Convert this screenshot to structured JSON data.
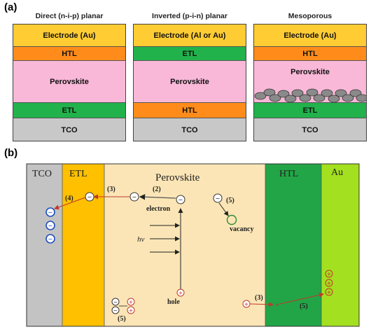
{
  "panel_a": {
    "label": "(a)",
    "columns": [
      {
        "title": "Direct (n-i-p) planar",
        "layers": [
          {
            "label": "Electrode (Au)",
            "color": "#ffcc33"
          },
          {
            "label": "HTL",
            "color": "#ff8c1a"
          },
          {
            "label": "Perovskite",
            "color": "#f9b8d8"
          },
          {
            "label": "ETL",
            "color": "#21b24b"
          },
          {
            "label": "TCO",
            "color": "#c8c8c8"
          }
        ]
      },
      {
        "title": "Inverted (p-i-n) planar",
        "layers": [
          {
            "label": "Electrode (Al or Au)",
            "color": "#ffcc33"
          },
          {
            "label": "ETL",
            "color": "#21b24b"
          },
          {
            "label": "Perovskite",
            "color": "#f9b8d8"
          },
          {
            "label": "HTL",
            "color": "#ff8c1a"
          },
          {
            "label": "TCO",
            "color": "#c8c8c8"
          }
        ]
      },
      {
        "title": "Mesoporous",
        "layers": [
          {
            "label": "Electrode (Au)",
            "color": "#ffcc33"
          },
          {
            "label": "HTL",
            "color": "#ff8c1a"
          },
          {
            "label": "Perovskite",
            "color": "#f9b8d8"
          },
          {
            "label": "ETL",
            "color": "#21b24b"
          },
          {
            "label": "TCO",
            "color": "#c8c8c8"
          }
        ]
      }
    ]
  },
  "panel_b": {
    "label": "(b)",
    "regions": {
      "tco": {
        "label": "TCO",
        "color": "#c3c3c3"
      },
      "etl": {
        "label": "ETL",
        "color": "#ffc000"
      },
      "perovskite": {
        "label": "Perovskite",
        "color": "#fbe5b6"
      },
      "htl": {
        "label": "HTL",
        "color": "#22a546"
      },
      "au": {
        "label": "Au",
        "color": "#a3e01f"
      }
    },
    "annotations": {
      "step2": "(2)",
      "step3_top": "(3)",
      "step4": "(4)",
      "step5_top": "(5)",
      "step3_bottom": "(3)",
      "step5_bottom": "(5)",
      "step5_left": "(5)",
      "electron": "electron",
      "hole": "hole",
      "vacancy": "vacancy",
      "hv": "hv"
    },
    "symbols": {
      "minus": "−",
      "plus": "+"
    }
  }
}
